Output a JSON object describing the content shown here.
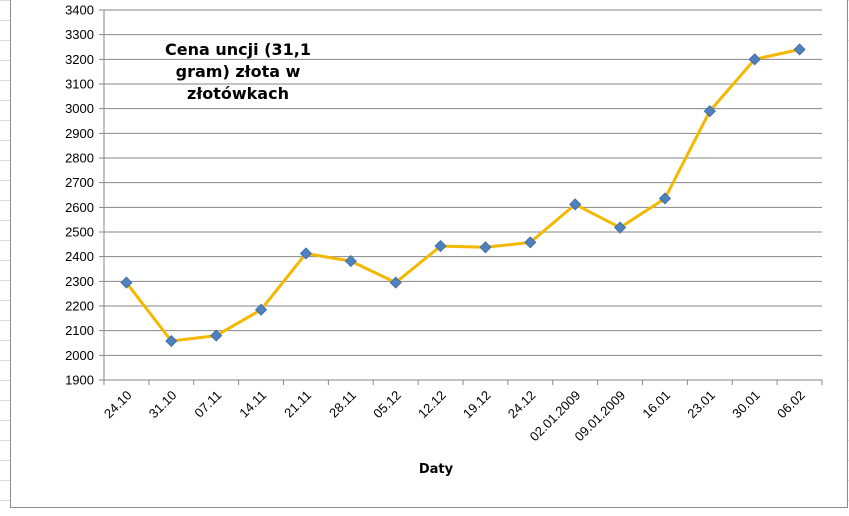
{
  "chart_data": {
    "type": "line",
    "title_lines": [
      "Cena uncji (31,1",
      "gram) złota w",
      "złotówkach"
    ],
    "xlabel": "Daty",
    "ylabel": "",
    "ylim": [
      1900,
      3400
    ],
    "ystep": 100,
    "grid": true,
    "legend": "none",
    "categories": [
      "24.10",
      "31.10",
      "07.11",
      "14.11",
      "21.11",
      "28.11",
      "05.12",
      "12.12",
      "19.12",
      "24.12",
      "02.01.2009",
      "09.01.2009",
      "16.01",
      "23.01",
      "30.01",
      "06.02"
    ],
    "series": [
      {
        "values": [
          2295,
          2058,
          2080,
          2185,
          2413,
          2382,
          2295,
          2443,
          2438,
          2458,
          2612,
          2518,
          2636,
          2990,
          3200,
          3240
        ],
        "line_color": "#f5b800",
        "marker_color": "#4f81bd"
      }
    ]
  }
}
